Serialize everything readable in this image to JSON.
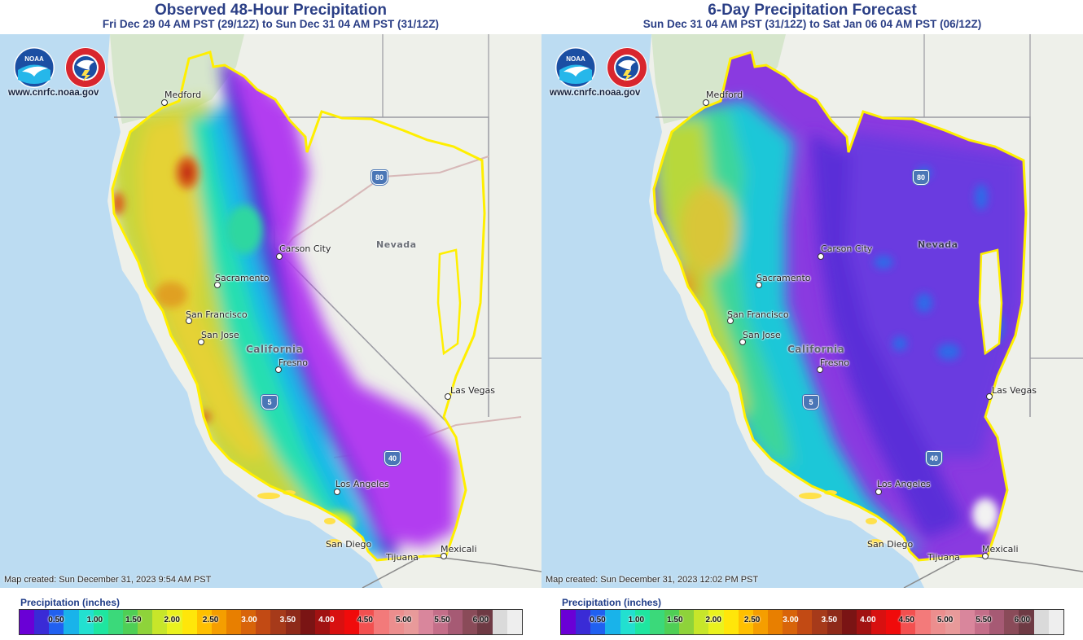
{
  "panels": [
    {
      "title": "Observed 48-Hour Precipitation",
      "subtitle": "Fri Dec 29 04 AM PST (29/12Z) to Sun Dec 31 04 AM PST (31/12Z)",
      "site": "www.cnrfc.noaa.gov",
      "created": "Map created: Sun December 31, 2023 9:54 AM PST"
    },
    {
      "title": "6-Day Precipitation Forecast",
      "subtitle": "Sun Dec 31 04 AM PST (31/12Z) to Sat Jan 06 04 AM PST (06/12Z)",
      "site": "www.cnrfc.noaa.gov",
      "created": "Map created: Sun December 31, 2023 12:02 PM PST"
    }
  ],
  "map_labels": {
    "cities": [
      "Medford",
      "Carson City",
      "Sacramento",
      "San Francisco",
      "San Jose",
      "Fresno",
      "Las Vegas",
      "Los Angeles",
      "San Diego",
      "Tijuana",
      "Mexicali"
    ],
    "states": [
      "Nevada",
      "California"
    ],
    "highways": [
      "80",
      "5",
      "40"
    ]
  },
  "logos": {
    "noaa": "NOAA",
    "nws": "NATIONAL WEATHER SERVICE"
  },
  "legend": {
    "label": "Precipitation (inches)",
    "ticks": [
      "0.50",
      "1.00",
      "1.50",
      "2.00",
      "2.50",
      "3.00",
      "3.50",
      "4.00",
      "4.50",
      "5.00",
      "5.50",
      "6.00"
    ],
    "colors": [
      "#6a00d6",
      "#3a2bd6",
      "#2060f0",
      "#19b3ea",
      "#22e0d0",
      "#1ee6a0",
      "#3bd97a",
      "#4fcf55",
      "#8ed33a",
      "#c7e62a",
      "#eaf21e",
      "#ffe60a",
      "#ffc000",
      "#f59e00",
      "#e87f00",
      "#d8640a",
      "#c24a14",
      "#a63a1a",
      "#8e2a1a",
      "#7a1414",
      "#a11212",
      "#d81010",
      "#f00b0b",
      "#f35050",
      "#f37a7a",
      "#ec8e8e",
      "#e89a9a",
      "#d9869c",
      "#c46e89",
      "#a65a74",
      "#8a4b59",
      "#6e3a44",
      "#dadada",
      "#eeeeee"
    ]
  },
  "colors": {
    "title": "#2b3f86",
    "water": "#bcdcf2",
    "boundary": "#ffef00"
  }
}
